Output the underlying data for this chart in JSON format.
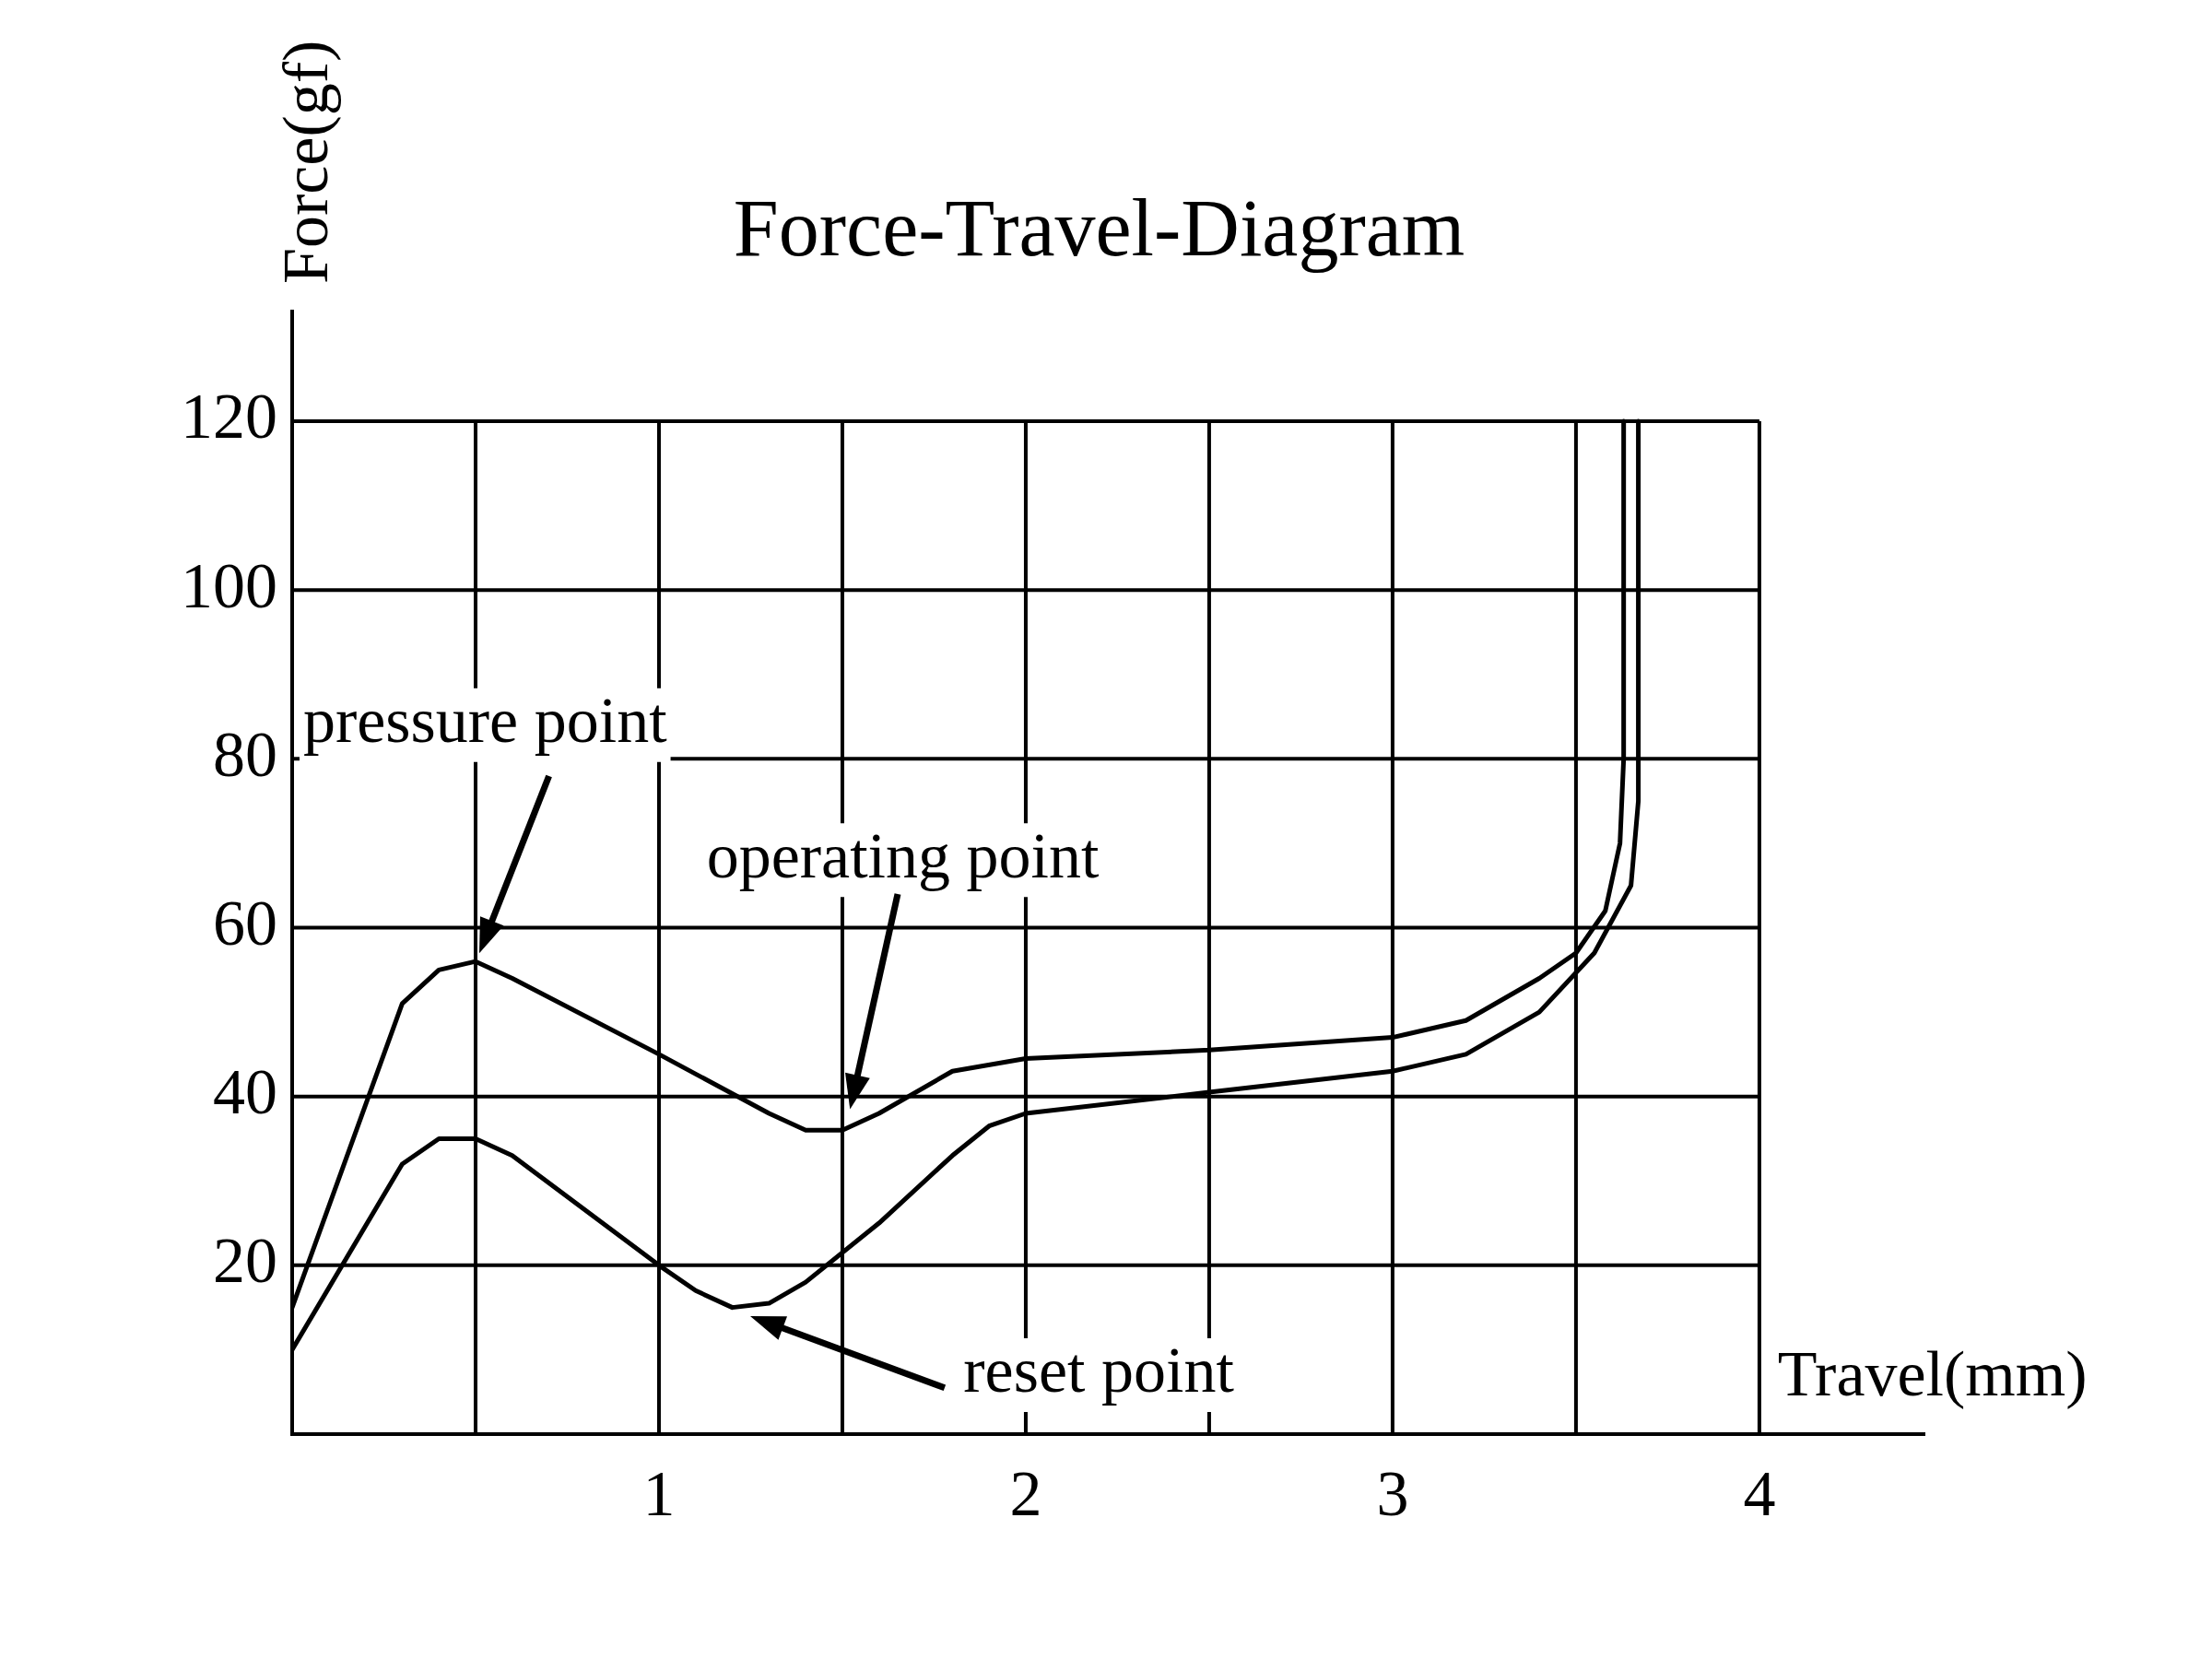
{
  "chart_data": {
    "type": "line",
    "title": "Force-Travel-Diagram",
    "xlabel": "Travel(mm)",
    "ylabel": "Force(gf)",
    "xlim": [
      0,
      4.45
    ],
    "ylim": [
      0,
      133
    ],
    "xticks": [
      {
        "value": 0,
        "label": null
      },
      {
        "value": 0.5,
        "label": null
      },
      1,
      {
        "value": 1.5,
        "label": null
      },
      2,
      {
        "value": 2.5,
        "label": null
      },
      3,
      {
        "value": 3.5,
        "label": null
      },
      4
    ],
    "yticks": [
      {
        "value": 0,
        "label": null
      },
      20,
      40,
      60,
      80,
      100,
      120
    ],
    "grid": true,
    "series": [
      {
        "color": "#000000",
        "x": [
          0,
          0.3,
          0.4,
          0.5,
          0.6,
          1.0,
          1.3,
          1.4,
          1.5,
          1.6,
          1.8,
          2.0,
          2.5,
          3.0,
          3.2,
          3.4,
          3.5,
          3.58,
          3.62,
          3.63,
          3.63
        ],
        "values": [
          15,
          51,
          55,
          56,
          54,
          45,
          38,
          36,
          36,
          38,
          43,
          44.5,
          45.5,
          47,
          49,
          54,
          57,
          62,
          70,
          80,
          120
        ]
      },
      {
        "color": "#000000",
        "x": [
          0,
          0.3,
          0.4,
          0.5,
          0.6,
          1.0,
          1.1,
          1.2,
          1.3,
          1.4,
          1.6,
          1.8,
          1.9,
          2.0,
          2.5,
          3.0,
          3.2,
          3.4,
          3.55,
          3.65,
          3.67,
          3.67
        ],
        "values": [
          10,
          32,
          35,
          35,
          33,
          20,
          17,
          15,
          15.5,
          18,
          25,
          33,
          36.5,
          38,
          40.5,
          43,
          45,
          50,
          57,
          65,
          75,
          120
        ]
      }
    ],
    "annotations": [
      "pressure point",
      "operating point",
      "reset point"
    ]
  }
}
